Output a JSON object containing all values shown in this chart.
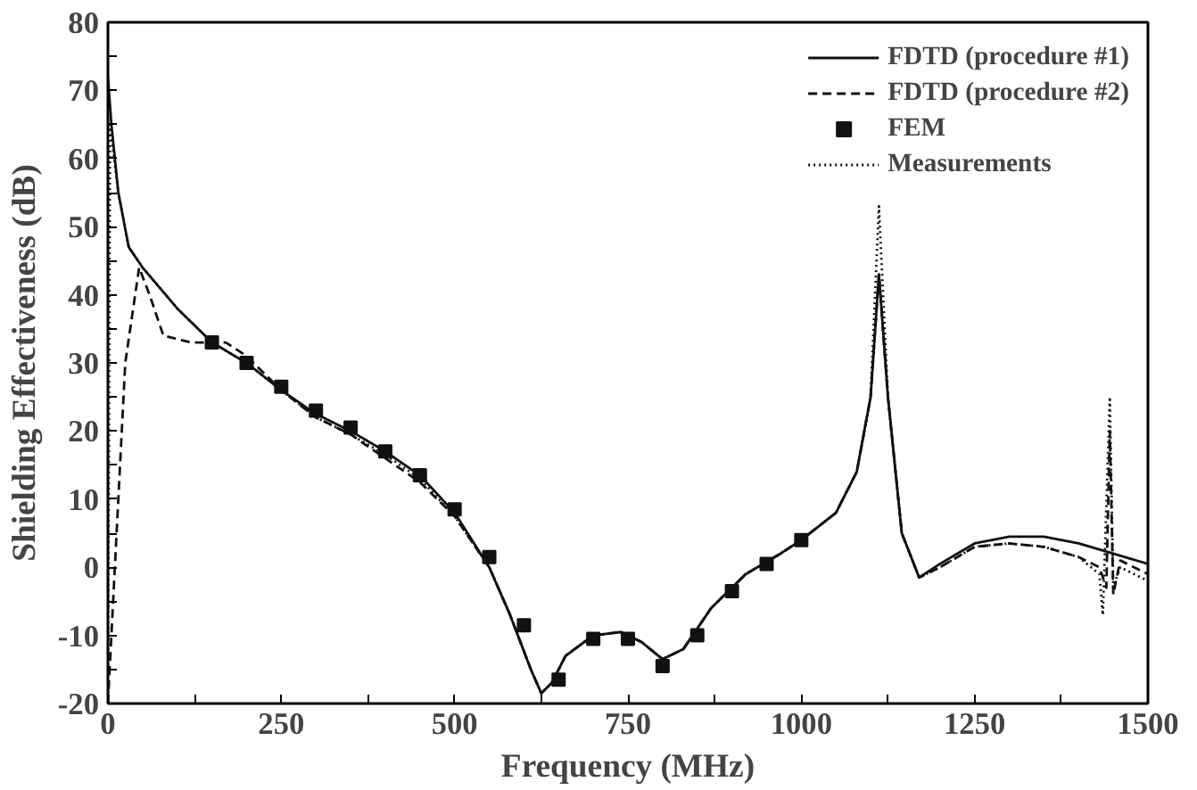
{
  "chart_data": {
    "type": "line",
    "xlabel": "Frequency (MHz)",
    "ylabel": "Shielding Effectiveness (dB)",
    "xlim": [
      0,
      1500
    ],
    "ylim": [
      -20,
      80
    ],
    "xticks": [
      0,
      {
        "value": 125,
        "label": null
      },
      250,
      {
        "value": 375,
        "label": null
      },
      500,
      {
        "value": 625,
        "label": null
      },
      750,
      {
        "value": 875,
        "label": null
      },
      1000,
      {
        "value": 1125,
        "label": null
      },
      1250,
      {
        "value": 1375,
        "label": null
      },
      1500
    ],
    "yticks": [
      -20,
      {
        "value": -15,
        "label": null
      },
      -10,
      {
        "value": -5,
        "label": null
      },
      0,
      {
        "value": 5,
        "label": null
      },
      10,
      {
        "value": 15,
        "label": null
      },
      20,
      {
        "value": 25,
        "label": null
      },
      30,
      {
        "value": 35,
        "label": null
      },
      40,
      {
        "value": 45,
        "label": null
      },
      50,
      {
        "value": 55,
        "label": null
      },
      60,
      {
        "value": 65,
        "label": null
      },
      70,
      {
        "value": 75,
        "label": null
      },
      80
    ],
    "grid": false,
    "legend": "top right",
    "series": [
      {
        "name": "FDTD (procedure #1)",
        "line_style": "solid",
        "color": "#111111",
        "x": [
          0,
          5,
          15,
          30,
          50,
          100,
          150,
          200,
          250,
          300,
          350,
          400,
          450,
          500,
          550,
          580,
          610,
          625,
          640,
          660,
          700,
          740,
          770,
          800,
          830,
          870,
          920,
          970,
          1000,
          1050,
          1080,
          1100,
          1112,
          1125,
          1145,
          1170,
          1200,
          1250,
          1300,
          1350,
          1400,
          1450,
          1500
        ],
        "values": [
          72,
          65,
          55,
          47,
          44,
          38,
          33,
          30,
          26,
          22.5,
          20,
          17,
          13.5,
          8,
          0,
          -7,
          -15,
          -18.5,
          -17,
          -13,
          -10,
          -9.5,
          -11,
          -13.5,
          -12,
          -6,
          -1,
          2,
          4,
          8,
          14,
          25,
          43,
          25,
          5,
          -1.5,
          0.5,
          3.5,
          4.5,
          4.5,
          3.5,
          2,
          0.5
        ]
      },
      {
        "name": "FDTD (procedure #2)",
        "line_style": "dashed",
        "color": "#111111",
        "x": [
          0,
          10,
          25,
          45,
          60,
          80,
          120,
          170,
          200,
          250,
          300,
          350,
          400,
          450,
          500,
          550,
          580,
          610,
          625,
          640,
          660,
          700,
          740,
          770,
          800,
          830,
          870,
          920,
          970,
          1000,
          1050,
          1080,
          1100,
          1112,
          1125,
          1145,
          1170,
          1200,
          1250,
          1300,
          1350,
          1400,
          1430,
          1440,
          1445,
          1450,
          1460,
          1500
        ],
        "values": [
          -20,
          0,
          30,
          44,
          40,
          34,
          33,
          33,
          31,
          26,
          22,
          19.5,
          16,
          12.5,
          7.5,
          0,
          -7,
          -15,
          -18.5,
          -17,
          -13,
          -10,
          -9.5,
          -11,
          -13.5,
          -12,
          -6,
          -1,
          2,
          4,
          8,
          14,
          25,
          43,
          25,
          5,
          -1.5,
          0,
          3,
          3.5,
          3,
          1.5,
          0,
          -3,
          20,
          -4,
          1,
          -1
        ]
      },
      {
        "name": "FEM",
        "type": "scatter",
        "marker": "square",
        "color": "#111111",
        "x": [
          150,
          200,
          250,
          300,
          350,
          400,
          450,
          500,
          550,
          600,
          650,
          700,
          750,
          800,
          850,
          900,
          950,
          1000
        ],
        "values": [
          33,
          30,
          26.5,
          23,
          20.5,
          17,
          13.5,
          8.5,
          1.5,
          -8.5,
          -16.5,
          -10.5,
          -10.5,
          -14.5,
          -10,
          -3.5,
          0.5,
          4
        ]
      },
      {
        "name": "Measurements",
        "line_style": "dotted",
        "color": "#111111",
        "x": [
          0,
          3,
          15,
          30,
          50,
          100,
          150,
          200,
          250,
          300,
          350,
          400,
          450,
          500,
          550,
          580,
          610,
          625,
          640,
          660,
          700,
          740,
          770,
          800,
          830,
          870,
          920,
          970,
          1000,
          1050,
          1080,
          1100,
          1112,
          1125,
          1145,
          1170,
          1200,
          1250,
          1300,
          1350,
          1400,
          1430,
          1435,
          1445,
          1450,
          1460,
          1500
        ],
        "values": [
          -20,
          65,
          55,
          47,
          44,
          38,
          33,
          30,
          26,
          22,
          19.5,
          16.5,
          13,
          7.5,
          0,
          -7,
          -15,
          -18.5,
          -17,
          -13,
          -10,
          -9.5,
          -11,
          -13.5,
          -12,
          -6,
          -1,
          2,
          4,
          8,
          14,
          25,
          53,
          25,
          5,
          -1.5,
          0,
          3,
          3.5,
          3,
          1.5,
          -1,
          -7,
          25,
          -3,
          0,
          -2
        ]
      }
    ]
  }
}
